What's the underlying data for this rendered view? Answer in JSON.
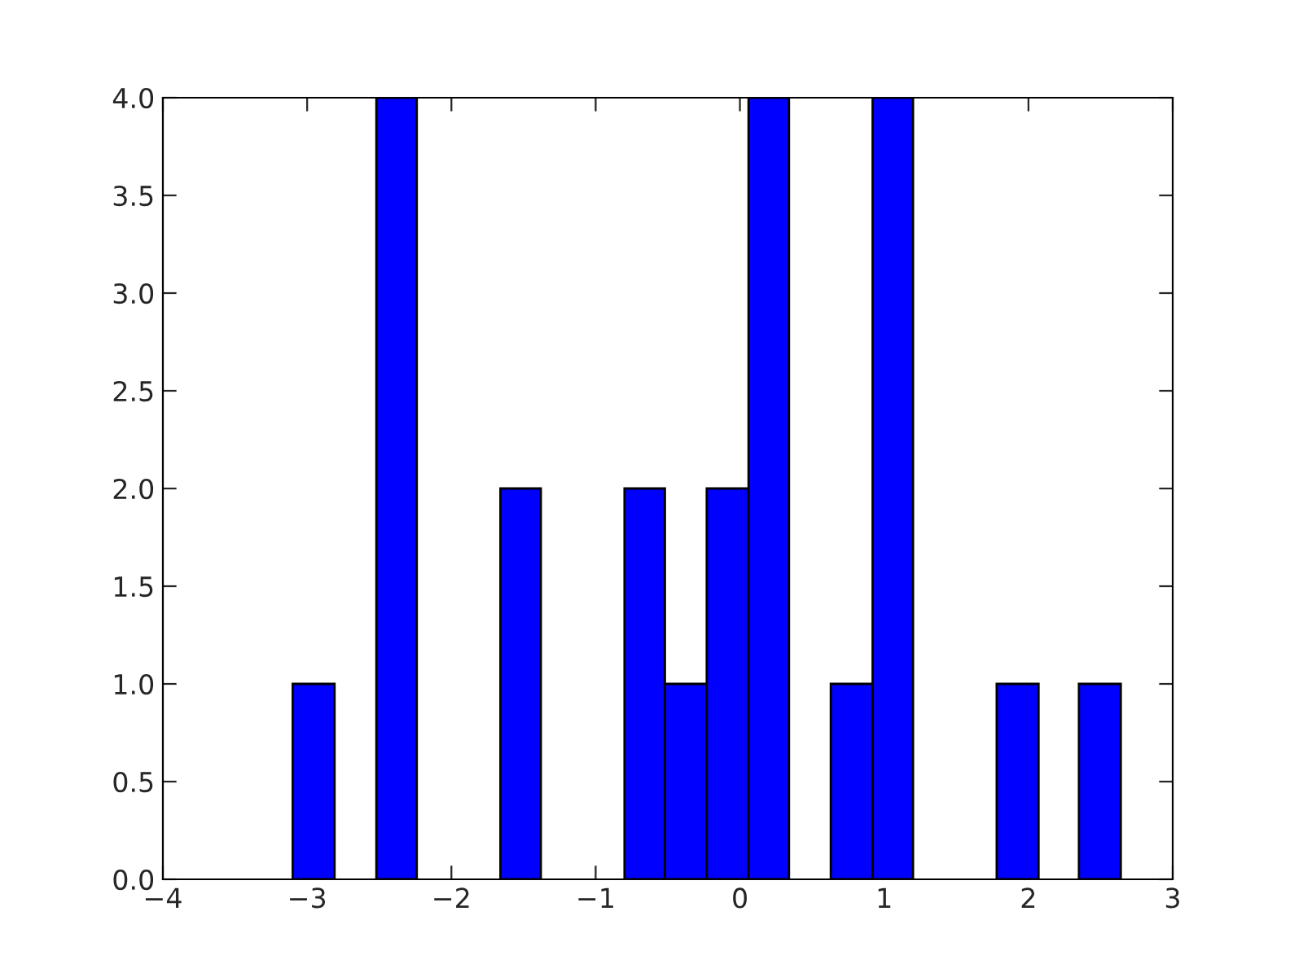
{
  "chart_data": {
    "type": "histogram",
    "bins": [
      -3.1,
      -2.81,
      -2.52,
      -2.24,
      -1.66,
      -1.38,
      -0.8,
      -0.52,
      -0.23,
      0.06,
      0.34,
      0.63,
      0.92,
      1.2,
      1.78,
      2.07,
      2.35,
      2.64
    ],
    "values": [
      1,
      0,
      4,
      0,
      2,
      0,
      2,
      1,
      2,
      4,
      0,
      1,
      4,
      0,
      1,
      0,
      1
    ],
    "color": "#0000ff",
    "xlim": [
      -4,
      3
    ],
    "xticks": [
      {
        "value": -4,
        "label": "−4"
      },
      {
        "value": -3,
        "label": "−3"
      },
      {
        "value": -2,
        "label": "−2"
      },
      {
        "value": -1,
        "label": "−1"
      },
      0,
      1,
      2,
      3
    ],
    "ylim": [
      0,
      4
    ],
    "yticks": [
      {
        "value": 0,
        "label": "0.0"
      },
      {
        "value": 0.5,
        "label": "0.5"
      },
      {
        "value": 1,
        "label": "1.0"
      },
      {
        "value": 1.5,
        "label": "1.5"
      },
      {
        "value": 2,
        "label": "2.0"
      },
      {
        "value": 2.5,
        "label": "2.5"
      },
      {
        "value": 3,
        "label": "3.0"
      },
      {
        "value": 3.5,
        "label": "3.5"
      },
      {
        "value": 4,
        "label": "4.0"
      }
    ],
    "grid": false
  }
}
